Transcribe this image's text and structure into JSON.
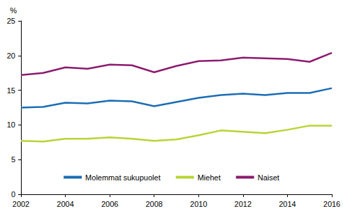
{
  "chart_data": {
    "type": "line",
    "y_label": "%",
    "x": [
      2002,
      2003,
      2004,
      2005,
      2006,
      2007,
      2008,
      2009,
      2010,
      2011,
      2012,
      2013,
      2014,
      2015,
      2016
    ],
    "xlim": [
      2002,
      2016
    ],
    "xticks": [
      2002,
      2004,
      2006,
      2008,
      2010,
      2012,
      2014,
      2016
    ],
    "ylim": [
      0,
      25
    ],
    "yticks": [
      0,
      5,
      10,
      15,
      20,
      25
    ],
    "grid": false,
    "legend": "bottom",
    "series": [
      {
        "name": "Molemmat sukupuolet",
        "color": "#1b6cb4",
        "values": [
          12.5,
          12.6,
          13.2,
          13.1,
          13.5,
          13.4,
          12.7,
          13.3,
          13.9,
          14.3,
          14.5,
          14.3,
          14.6,
          14.6,
          15.3
        ]
      },
      {
        "name": "Miehet",
        "color": "#b7d433",
        "values": [
          7.7,
          7.6,
          8.0,
          8.0,
          8.2,
          8.0,
          7.7,
          7.9,
          8.5,
          9.2,
          9.0,
          8.8,
          9.3,
          9.9,
          9.9
        ]
      },
      {
        "name": "Naiset",
        "color": "#8c1a6e",
        "values": [
          17.2,
          17.5,
          18.3,
          18.1,
          18.7,
          18.6,
          17.6,
          18.5,
          19.2,
          19.3,
          19.7,
          19.6,
          19.5,
          19.1,
          20.4
        ]
      }
    ]
  }
}
